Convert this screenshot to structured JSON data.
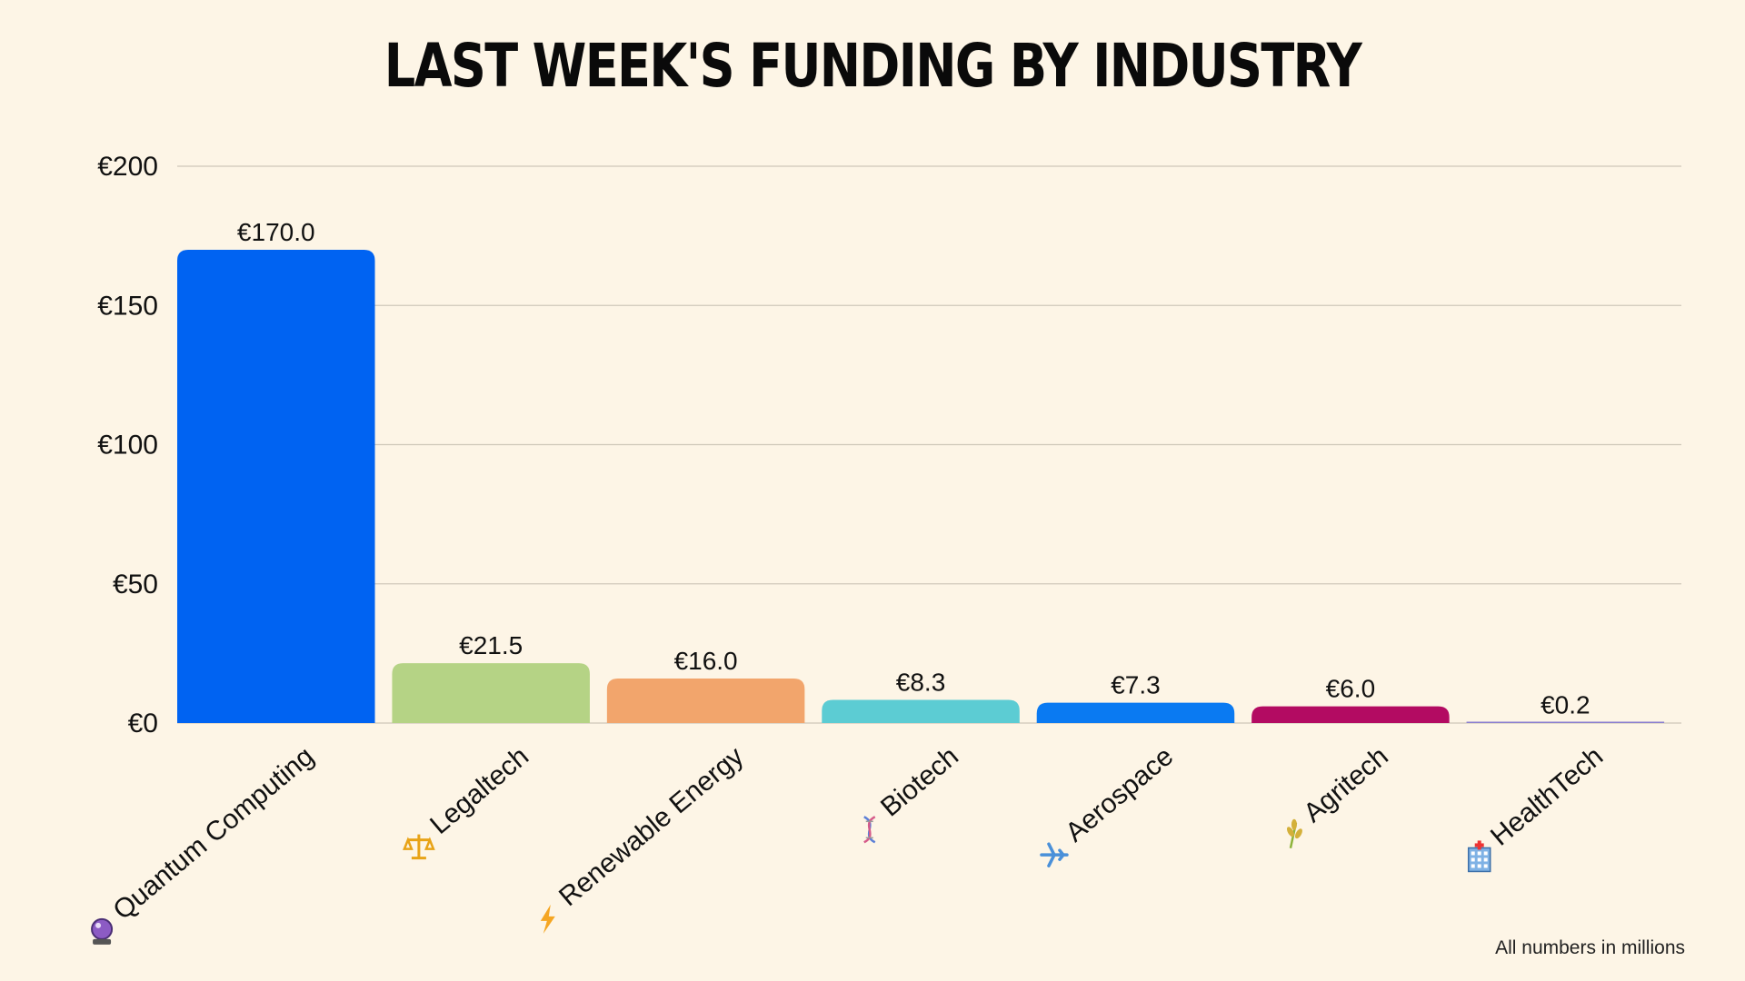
{
  "chart_data": {
    "type": "bar",
    "title": "LAST WEEK'S FUNDING BY INDUSTRY",
    "xlabel": "",
    "ylabel": "",
    "ylim": [
      0,
      200
    ],
    "yticks": [
      0,
      50,
      100,
      150,
      200
    ],
    "value_prefix": "€",
    "grid": true,
    "categories": [
      "Quantum Computing",
      "Legaltech",
      "Renewable Energy",
      "Biotech",
      "Aerospace",
      "Agritech",
      "HealthTech"
    ],
    "icons": [
      "crystal-ball-icon",
      "scales-icon",
      "lightning-icon",
      "dna-icon",
      "airplane-icon",
      "wheat-icon",
      "hospital-icon"
    ],
    "values": [
      170.0,
      21.5,
      16.0,
      8.3,
      7.3,
      6.0,
      0.2
    ],
    "value_labels": [
      "€170.0",
      "€21.5",
      "€16.0",
      "€8.3",
      "€7.3",
      "€6.0",
      "€0.2"
    ],
    "ytick_labels": [
      "€0",
      "€50",
      "€100",
      "€150",
      "€200"
    ],
    "colors": [
      "#0063F2",
      "#B5D385",
      "#F2A56C",
      "#5CCCD3",
      "#0A7AF2",
      "#B30B62",
      "#8A7FD0"
    ],
    "note": "All numbers in millions"
  }
}
